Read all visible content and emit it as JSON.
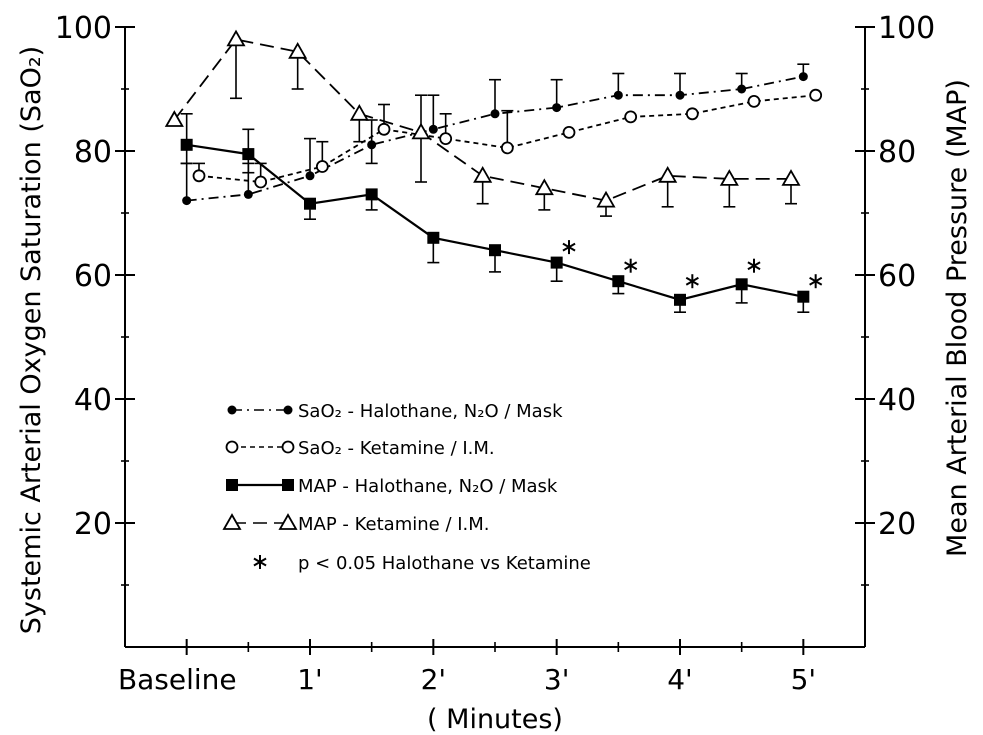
{
  "chart_data": {
    "type": "line",
    "title": "",
    "xlabel": "( Minutes)",
    "ylabel_left": "Systemic Arterial Oxygen Saturation (SaO₂)",
    "ylabel_right": "Mean Arterial Blood Pressure (MAP)",
    "x_ticks": [
      {
        "x": 0,
        "label": "Baseline"
      },
      {
        "x": 1,
        "label": "1'"
      },
      {
        "x": 2,
        "label": "2'"
      },
      {
        "x": 3,
        "label": "3'"
      },
      {
        "x": 4,
        "label": "4'"
      },
      {
        "x": 5,
        "label": "5'"
      }
    ],
    "xlim": [
      -0.5,
      5.5
    ],
    "ylim": [
      0,
      100
    ],
    "y_ticks_left": [
      "20",
      "40",
      "60",
      "80",
      "100"
    ],
    "y_ticks_right": [
      "20",
      "40",
      "60",
      "80",
      "100"
    ],
    "y_tick_values": [
      20,
      40,
      60,
      80,
      100
    ],
    "grid": false,
    "legend_position": "lower-center",
    "series": [
      {
        "name": "SaO₂ - Halothane, N₂O / Mask",
        "axis": "left",
        "marker": "filled-circle",
        "line": "dash-dot",
        "x": [
          0,
          0.5,
          1,
          1.5,
          2,
          2.5,
          3,
          3.5,
          4,
          4.5,
          5
        ],
        "y": [
          72,
          73,
          76,
          81,
          83.5,
          86,
          87,
          89,
          89,
          90,
          92
        ],
        "err_up": [
          6,
          5,
          6,
          4,
          5.5,
          5.5,
          4.5,
          3.5,
          3.5,
          2.5,
          2
        ],
        "err_down": [
          0,
          0,
          0,
          3,
          0,
          0,
          0,
          0,
          0,
          0,
          0
        ]
      },
      {
        "name": "SaO₂ - Ketamine / I.M.",
        "axis": "left",
        "marker": "open-circle",
        "line": "dashed",
        "x": [
          0.1,
          0.6,
          1.1,
          1.6,
          2.1,
          2.6,
          3.1,
          3.6,
          4.1,
          4.6,
          5.1
        ],
        "y": [
          76,
          75,
          77.5,
          83.5,
          82,
          80.5,
          83,
          85.5,
          86,
          88,
          89
        ],
        "err_up": [
          2,
          3,
          4,
          4,
          4,
          6,
          0,
          0,
          0,
          0,
          0
        ],
        "err_down": [
          0,
          0,
          0,
          0,
          0,
          0,
          0,
          0,
          0,
          0,
          0
        ]
      },
      {
        "name": "MAP - Halothane, N₂O / Mask",
        "axis": "right",
        "marker": "filled-square",
        "line": "solid",
        "x": [
          0,
          0.5,
          1,
          1.5,
          2,
          2.5,
          3,
          3.5,
          4,
          4.5,
          5
        ],
        "y": [
          81,
          79.5,
          71.5,
          73,
          66,
          64,
          62,
          59,
          56,
          58.5,
          56.5
        ],
        "err_up": [
          5,
          4,
          0,
          0,
          0,
          0,
          0,
          0,
          0,
          0,
          0
        ],
        "err_down": [
          3,
          3,
          2.5,
          2.5,
          4,
          3.5,
          3,
          2,
          2,
          3,
          2.5
        ]
      },
      {
        "name": "MAP - Ketamine / I.M.",
        "axis": "right",
        "marker": "open-triangle",
        "line": "long-dash",
        "x": [
          -0.1,
          0.4,
          0.9,
          1.4,
          1.9,
          2.4,
          2.9,
          3.4,
          3.9,
          4.4,
          4.9
        ],
        "y": [
          85,
          98,
          96,
          86,
          83,
          76,
          74,
          72,
          76,
          75.5,
          75.5
        ],
        "err_up": [
          0,
          0,
          0,
          0,
          6,
          0,
          0,
          0,
          0,
          0,
          0
        ],
        "err_down": [
          0,
          9.5,
          6,
          4.5,
          8,
          4.5,
          3.5,
          2.5,
          5,
          4.5,
          4
        ]
      }
    ],
    "significance": {
      "name": "p < 0.05 Halothane vs Ketamine",
      "x": [
        3.1,
        3.6,
        4.1,
        4.6,
        5.1
      ],
      "y": [
        64.5,
        61.5,
        59,
        61.5,
        59
      ]
    }
  },
  "colors": {
    "ink": "#000000",
    "background": "#ffffff"
  }
}
